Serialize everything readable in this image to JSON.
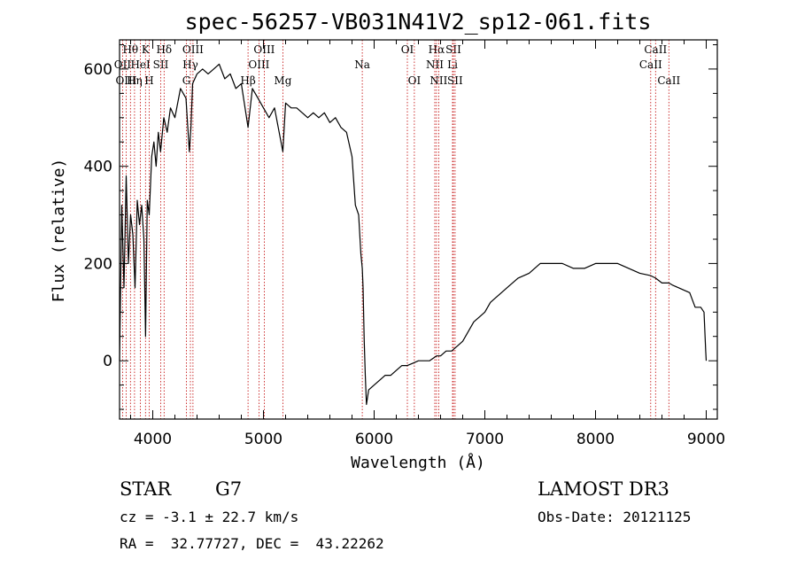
{
  "chart_data": {
    "type": "line",
    "title": "spec-56257-VB031N41V2_sp12-061.fits",
    "xlabel": "Wavelength (Å)",
    "ylabel": "Flux (relative)",
    "xlim": [
      3700,
      9100
    ],
    "ylim": [
      -120,
      660
    ],
    "xticks": [
      4000,
      5000,
      6000,
      7000,
      8000,
      9000
    ],
    "yticks": [
      0,
      200,
      400,
      600
    ],
    "grid": false,
    "series": [
      {
        "color": "#000000",
        "x": [
          3700,
          3720,
          3740,
          3760,
          3780,
          3800,
          3820,
          3840,
          3860,
          3880,
          3900,
          3920,
          3935,
          3950,
          3968,
          3990,
          4010,
          4030,
          4050,
          4070,
          4100,
          4130,
          4160,
          4200,
          4250,
          4300,
          4330,
          4345,
          4360,
          4400,
          4450,
          4500,
          4550,
          4600,
          4650,
          4700,
          4750,
          4800,
          4861,
          4900,
          4950,
          5000,
          5050,
          5100,
          5175,
          5200,
          5250,
          5300,
          5350,
          5400,
          5450,
          5500,
          5550,
          5600,
          5650,
          5700,
          5750,
          5800,
          5830,
          5860,
          5880,
          5893,
          5900,
          5910,
          5920,
          5930,
          5950,
          6000,
          6050,
          6100,
          6150,
          6200,
          6250,
          6300,
          6350,
          6400,
          6450,
          6500,
          6563,
          6600,
          6650,
          6700,
          6750,
          6800,
          6850,
          6900,
          6950,
          7000,
          7050,
          7100,
          7150,
          7200,
          7300,
          7400,
          7500,
          7600,
          7700,
          7800,
          7900,
          8000,
          8100,
          8200,
          8300,
          8400,
          8498,
          8542,
          8600,
          8662,
          8700,
          8750,
          8800,
          8850,
          8900,
          8950,
          8980,
          8995,
          9000
        ],
        "y": [
          0,
          320,
          150,
          380,
          200,
          300,
          260,
          150,
          330,
          280,
          320,
          250,
          50,
          330,
          300,
          420,
          450,
          400,
          470,
          430,
          500,
          470,
          520,
          500,
          560,
          540,
          430,
          480,
          570,
          590,
          600,
          590,
          600,
          610,
          580,
          590,
          560,
          570,
          480,
          560,
          540,
          520,
          500,
          520,
          430,
          530,
          520,
          520,
          510,
          500,
          510,
          500,
          510,
          490,
          500,
          480,
          470,
          420,
          320,
          300,
          220,
          190,
          150,
          40,
          -30,
          -90,
          -60,
          -50,
          -40,
          -30,
          -30,
          -20,
          -10,
          -10,
          -5,
          0,
          0,
          0,
          10,
          10,
          20,
          20,
          30,
          40,
          60,
          80,
          90,
          100,
          120,
          130,
          140,
          150,
          170,
          180,
          200,
          200,
          200,
          190,
          190,
          200,
          200,
          200,
          190,
          180,
          175,
          170,
          160,
          160,
          155,
          150,
          145,
          140,
          110,
          110,
          100,
          20,
          0
        ]
      }
    ],
    "spectral_lines": [
      {
        "label": "Hθ",
        "wavelength": 3798,
        "row": 0
      },
      {
        "label": "K",
        "wavelength": 3934,
        "row": 0
      },
      {
        "label": "Hδ",
        "wavelength": 4102,
        "row": 0
      },
      {
        "label": "OIII",
        "wavelength": 4363,
        "row": 0
      },
      {
        "label": "OIII",
        "wavelength": 5007,
        "row": 0
      },
      {
        "label": "OI",
        "wavelength": 6300,
        "row": 0
      },
      {
        "label": "Hα",
        "wavelength": 6563,
        "row": 0
      },
      {
        "label": "SII",
        "wavelength": 6716,
        "row": 0
      },
      {
        "label": "CaII",
        "wavelength": 8542,
        "row": 0
      },
      {
        "label": "OII",
        "wavelength": 3727,
        "row": 1
      },
      {
        "label": "HeI",
        "wavelength": 3889,
        "row": 1
      },
      {
        "label": "SII",
        "wavelength": 4072,
        "row": 1
      },
      {
        "label": "Hγ",
        "wavelength": 4340,
        "row": 1
      },
      {
        "label": "OIII",
        "wavelength": 4959,
        "row": 1
      },
      {
        "label": "Na",
        "wavelength": 5893,
        "row": 1
      },
      {
        "label": "NII",
        "wavelength": 6548,
        "row": 1
      },
      {
        "label": "Li",
        "wavelength": 6708,
        "row": 1
      },
      {
        "label": "CaII",
        "wavelength": 8498,
        "row": 1
      },
      {
        "label": "OIII",
        "wavelength": 3760,
        "row": 2
      },
      {
        "label": "Hη",
        "wavelength": 3835,
        "row": 2
      },
      {
        "label": "H",
        "wavelength": 3968,
        "row": 2
      },
      {
        "label": "G",
        "wavelength": 4305,
        "row": 2
      },
      {
        "label": "Hβ",
        "wavelength": 4861,
        "row": 2
      },
      {
        "label": "Mg",
        "wavelength": 5175,
        "row": 2
      },
      {
        "label": "OI",
        "wavelength": 6363,
        "row": 2
      },
      {
        "label": "NII",
        "wavelength": 6583,
        "row": 2
      },
      {
        "label": "SII",
        "wavelength": 6731,
        "row": 2
      },
      {
        "label": "CaII",
        "wavelength": 8662,
        "row": 2
      }
    ]
  },
  "info": {
    "object_class": "STAR",
    "subclass": "G7",
    "redshift": "cz = -3.1 ± 22.7 km/s",
    "coordinates": "RA =  32.77727, DEC =  43.22262",
    "survey": "LAMOST DR3",
    "obs_date": "Obs-Date: 20121125"
  }
}
